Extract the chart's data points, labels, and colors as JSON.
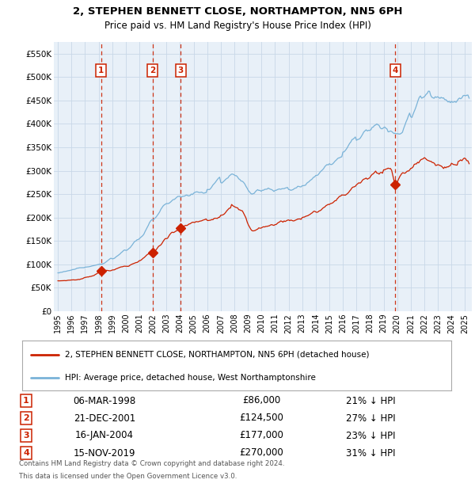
{
  "title_line1": "2, STEPHEN BENNETT CLOSE, NORTHAMPTON, NN5 6PH",
  "title_line2": "Price paid vs. HM Land Registry's House Price Index (HPI)",
  "legend_line1": "2, STEPHEN BENNETT CLOSE, NORTHAMPTON, NN5 6PH (detached house)",
  "legend_line2": "HPI: Average price, detached house, West Northamptonshire",
  "footer_line1": "Contains HM Land Registry data © Crown copyright and database right 2024.",
  "footer_line2": "This data is licensed under the Open Government Licence v3.0.",
  "transactions": [
    {
      "num": 1,
      "date": "06-MAR-1998",
      "price": 86000,
      "pct": "21%",
      "year_x": 1998.18
    },
    {
      "num": 2,
      "date": "21-DEC-2001",
      "price": 124500,
      "pct": "27%",
      "year_x": 2001.97
    },
    {
      "num": 3,
      "date": "16-JAN-2004",
      "price": 177000,
      "pct": "23%",
      "year_x": 2004.04
    },
    {
      "num": 4,
      "date": "15-NOV-2019",
      "price": 270000,
      "pct": "31%",
      "year_x": 2019.87
    }
  ],
  "ylim": [
    0,
    575000
  ],
  "xlim_start": 1994.7,
  "xlim_end": 2025.5,
  "bg_color": "#e8f0f8",
  "hpi_color": "#7ab3d8",
  "price_color": "#cc2200",
  "vline_color": "#cc2200",
  "box_color": "#cc2200",
  "grid_color": "#c8d8e8",
  "yticks": [
    0,
    50000,
    100000,
    150000,
    200000,
    250000,
    300000,
    350000,
    400000,
    450000,
    500000,
    550000
  ],
  "ytick_labels": [
    "£0",
    "£50K",
    "£100K",
    "£150K",
    "£200K",
    "£250K",
    "£300K",
    "£350K",
    "£400K",
    "£450K",
    "£500K",
    "£550K"
  ]
}
